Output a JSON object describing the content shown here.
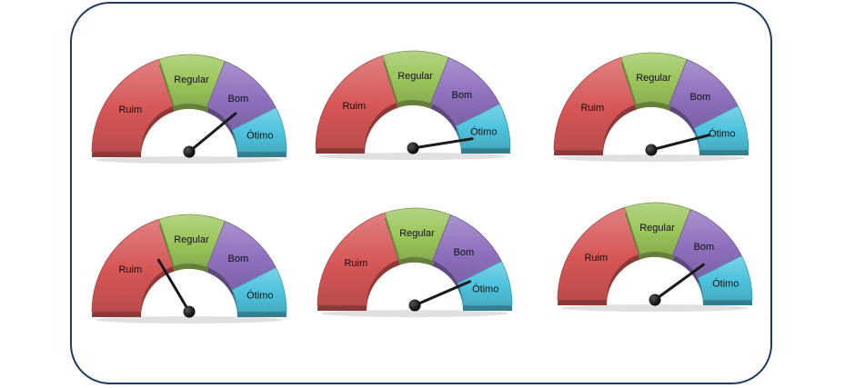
{
  "chart_data": {
    "type": "gauge",
    "bands": [
      {
        "label": "Ruim",
        "from": 0,
        "to": 40,
        "color": "#d65656"
      },
      {
        "label": "Regular",
        "from": 40,
        "to": 62,
        "color": "#9bc45a"
      },
      {
        "label": "Bom",
        "from": 62,
        "to": 85,
        "color": "#8e6fbd"
      },
      {
        "label": "Ótimo",
        "from": 85,
        "to": 100,
        "color": "#4ec3dd"
      }
    ],
    "gauges": [
      {
        "value": 78
      },
      {
        "value": 95
      },
      {
        "value": 92
      },
      {
        "value": 33
      },
      {
        "value": 87
      },
      {
        "value": 80
      }
    ]
  }
}
